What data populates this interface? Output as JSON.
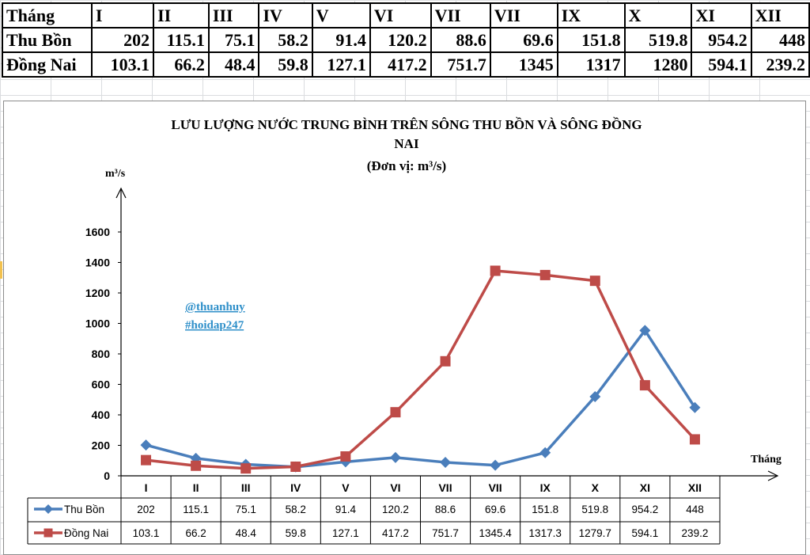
{
  "top_table": {
    "header": [
      "Tháng",
      "I",
      "II",
      "III",
      "IV",
      "V",
      "VI",
      "VII",
      "VII",
      "IX",
      "X",
      "XI",
      "XII"
    ],
    "rows": [
      {
        "label": "Thu Bồn",
        "values": [
          "202",
          "115.1",
          "75.1",
          "58.2",
          "91.4",
          "120.2",
          "88.6",
          "69.6",
          "151.8",
          "519.8",
          "954.2",
          "448"
        ]
      },
      {
        "label": "Đồng Nai",
        "values": [
          "103.1",
          "66.2",
          "48.4",
          "59.8",
          "127.1",
          "417.2",
          "751.7",
          "1345",
          "1317",
          "1280",
          "594.1",
          "239.2"
        ]
      }
    ]
  },
  "chart_data": {
    "type": "line",
    "title_lines": [
      "LƯU LƯỢNG NƯỚC TRUNG BÌNH TRÊN SÔNG THU  BỒN VÀ  SÔNG ĐỒNG",
      "NAI"
    ],
    "subtitle": "(Đơn vị: m³/s)",
    "ylabel": "m³/s",
    "xlabel": "Tháng",
    "ylim": [
      0,
      1600
    ],
    "yticks": [
      0,
      200,
      400,
      600,
      800,
      1000,
      1200,
      1400,
      1600
    ],
    "categories": [
      "I",
      "II",
      "III",
      "IV",
      "V",
      "VI",
      "VII",
      "VII",
      "IX",
      "X",
      "XI",
      "XII"
    ],
    "series": [
      {
        "name": "Thu Bồn",
        "color": "#4a7ebb",
        "marker": "diamond",
        "values": [
          202,
          115.1,
          75.1,
          58.2,
          91.4,
          120.2,
          88.6,
          69.6,
          151.8,
          519.8,
          954.2,
          448
        ],
        "labels": [
          "202",
          "115.1",
          "75.1",
          "58.2",
          "91.4",
          "120.2",
          "88.6",
          "69.6",
          "151.8",
          "519.8",
          "954.2",
          "448"
        ]
      },
      {
        "name": "Đồng Nai",
        "color": "#be4b48",
        "marker": "square",
        "values": [
          103.1,
          66.2,
          48.4,
          59.8,
          127.1,
          417.2,
          751.7,
          1345.4,
          1317.3,
          1279.7,
          594.1,
          239.2
        ],
        "labels": [
          "103.1",
          "66.2",
          "48.4",
          "59.8",
          "127.1",
          "417.2",
          "751.7",
          "1345.4",
          "1317.3",
          "1279.7",
          "594.1",
          "239.2"
        ]
      }
    ],
    "grid": false,
    "legend": "data-table-below"
  },
  "watermark": [
    "@thuanhuy",
    "#hoidap247"
  ]
}
